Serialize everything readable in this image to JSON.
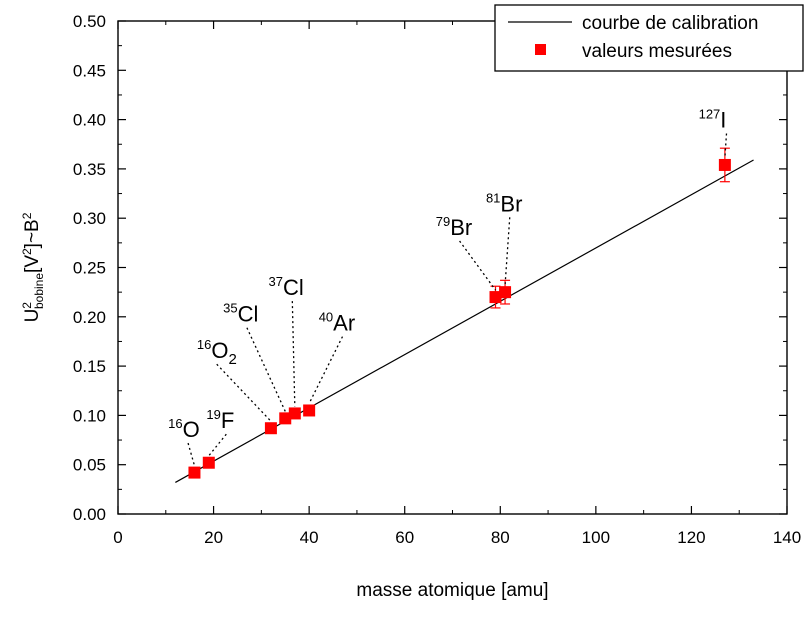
{
  "chart_data": {
    "type": "scatter",
    "xlabel": "masse atomique [amu]",
    "ylabel": {
      "parts": [
        {
          "text": "U",
          "style": "normal"
        },
        {
          "text": "2",
          "style": "sup"
        },
        {
          "text": "bobine",
          "style": "sub"
        },
        {
          "text": "[V",
          "style": "normal"
        },
        {
          "text": "2",
          "style": "sup"
        },
        {
          "text": "]~B",
          "style": "normal"
        },
        {
          "text": "2",
          "style": "sup"
        }
      ]
    },
    "xlim": [
      0,
      140
    ],
    "ylim": [
      0,
      0.5
    ],
    "xticks": [
      0,
      20,
      40,
      60,
      80,
      100,
      120,
      140
    ],
    "yticks": [
      0.0,
      0.05,
      0.1,
      0.15,
      0.2,
      0.25,
      0.3,
      0.35,
      0.4,
      0.45,
      0.5
    ],
    "xtick_labels": [
      "0",
      "20",
      "40",
      "60",
      "80",
      "100",
      "120",
      "140"
    ],
    "ytick_labels": [
      "0.00",
      "0.05",
      "0.10",
      "0.15",
      "0.20",
      "0.25",
      "0.30",
      "0.35",
      "0.40",
      "0.45",
      "0.50"
    ],
    "grid": false,
    "legend_position": "top-right",
    "series": [
      {
        "name": "courbe de calibration",
        "kind": "line",
        "color": "#000000",
        "x": [
          12,
          133
        ],
        "y": [
          0.032,
          0.359
        ]
      },
      {
        "name": "valeurs mesurées",
        "kind": "scatter",
        "color": "#ff0000",
        "marker": "square",
        "points": [
          {
            "x": 16,
            "y": 0.042,
            "err": 0.003
          },
          {
            "x": 19,
            "y": 0.052,
            "err": 0.003
          },
          {
            "x": 32,
            "y": 0.087,
            "err": 0.003
          },
          {
            "x": 35,
            "y": 0.097,
            "err": 0.003
          },
          {
            "x": 37,
            "y": 0.102,
            "err": 0.004
          },
          {
            "x": 40,
            "y": 0.105,
            "err": 0.004
          },
          {
            "x": 79,
            "y": 0.22,
            "err": 0.011
          },
          {
            "x": 81,
            "y": 0.225,
            "err": 0.012
          },
          {
            "x": 127,
            "y": 0.354,
            "err": 0.017
          }
        ]
      }
    ],
    "annotations": [
      {
        "mass": "16",
        "symbol": "O",
        "subscript": "",
        "point_x": 16,
        "point_y": 0.042,
        "label_x": 10.5,
        "label_y": 0.078
      },
      {
        "mass": "19",
        "symbol": "F",
        "subscript": "",
        "point_x": 19,
        "point_y": 0.052,
        "label_x": 18.5,
        "label_y": 0.087
      },
      {
        "mass": "16",
        "symbol": "O",
        "subscript": "2",
        "point_x": 32,
        "point_y": 0.087,
        "label_x": 16.5,
        "label_y": 0.158
      },
      {
        "mass": "35",
        "symbol": "Cl",
        "subscript": "",
        "point_x": 35,
        "point_y": 0.097,
        "label_x": 22.0,
        "label_y": 0.195
      },
      {
        "mass": "37",
        "symbol": "Cl",
        "subscript": "",
        "point_x": 37,
        "point_y": 0.102,
        "label_x": 31.5,
        "label_y": 0.222
      },
      {
        "mass": "40",
        "symbol": "Ar",
        "subscript": "",
        "point_x": 40,
        "point_y": 0.105,
        "label_x": 42.0,
        "label_y": 0.186
      },
      {
        "mass": "79",
        "symbol": "Br",
        "subscript": "",
        "point_x": 79,
        "point_y": 0.22,
        "label_x": 66.5,
        "label_y": 0.283
      },
      {
        "mass": "81",
        "symbol": "Br",
        "subscript": "",
        "point_x": 81,
        "point_y": 0.225,
        "label_x": 77.0,
        "label_y": 0.307
      },
      {
        "mass": "127",
        "symbol": "I",
        "subscript": "",
        "point_x": 127,
        "point_y": 0.354,
        "label_x": 121.5,
        "label_y": 0.392
      }
    ]
  }
}
